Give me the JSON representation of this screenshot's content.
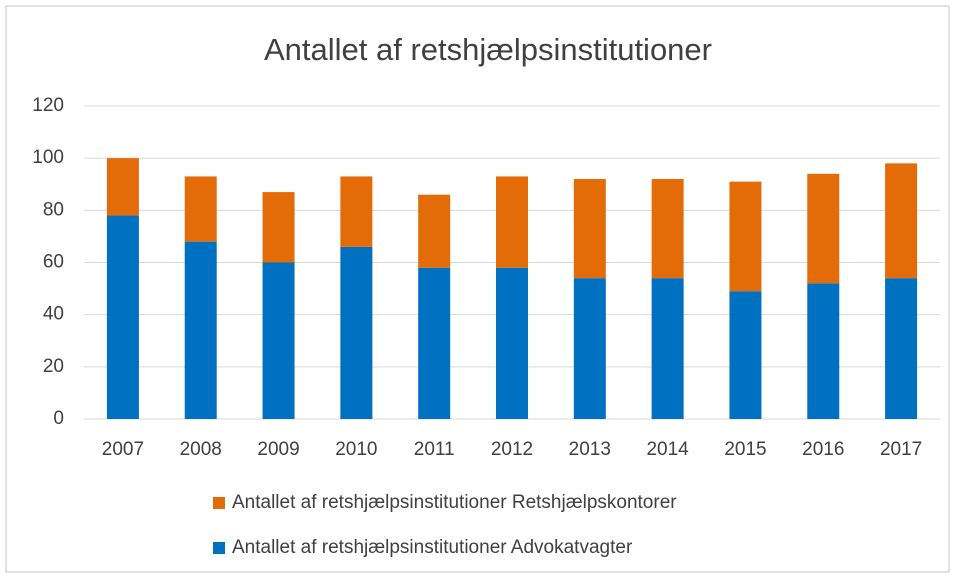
{
  "chart_data": {
    "type": "stacked_bar",
    "title": "Antallet af retshjælpsinstitutioner",
    "categories": [
      "2007",
      "2008",
      "2009",
      "2010",
      "2011",
      "2012",
      "2013",
      "2014",
      "2015",
      "2016",
      "2017"
    ],
    "series": [
      {
        "name": "Antallet af retshjælpsinstitutioner Advokatvagter",
        "color": "#0070c0",
        "values": [
          78,
          68,
          60,
          66,
          58,
          58,
          54,
          54,
          49,
          52,
          54
        ]
      },
      {
        "name": "Antallet af retshjælpsinstitutioner Retshjælpskontorer",
        "color": "#e36c09",
        "values": [
          22,
          25,
          27,
          27,
          28,
          35,
          38,
          38,
          42,
          42,
          44
        ]
      }
    ],
    "ylim": [
      0,
      120
    ],
    "yticks": [
      0,
      20,
      40,
      60,
      80,
      100,
      120
    ],
    "grid": true
  }
}
